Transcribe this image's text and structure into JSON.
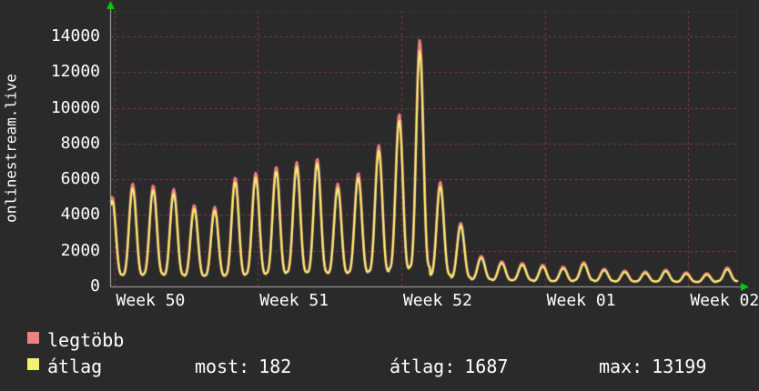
{
  "app": {
    "background": "#2a2a2a",
    "text_color": "#ffffff"
  },
  "chart_data": {
    "type": "line",
    "title": "",
    "ylabel_vertical": "onlinestream.live",
    "ylim": [
      0,
      15400
    ],
    "y_ticks": [
      0,
      2000,
      4000,
      6000,
      8000,
      10000,
      12000,
      14000
    ],
    "x_tick_labels": [
      {
        "label": "Week 50",
        "day": 0.6
      },
      {
        "label": "Week 51",
        "day": 7.6
      },
      {
        "label": "Week 52",
        "day": 14.6
      },
      {
        "label": "Week 01",
        "day": 21.6
      },
      {
        "label": "Week 02",
        "day": 28.6
      }
    ],
    "days": 32,
    "grid": true,
    "grid_color": "rgba(225,80,80,0.45)",
    "grid_minor_color": "rgba(200,80,80,0.12)",
    "axis_color": "#b0b0b0",
    "arrow_color": "#00d000",
    "daily_troughs": [
      650,
      650,
      700,
      650,
      600,
      600,
      650,
      700,
      750,
      800,
      800,
      750,
      800,
      850,
      1000,
      1100,
      650,
      500,
      400,
      350,
      350,
      300,
      300,
      350,
      300,
      280,
      280,
      280,
      260,
      250,
      300,
      182
    ],
    "series": [
      {
        "name": "legtöbb",
        "color": "#f08080",
        "daily_peaks": [
          5000,
          5750,
          5650,
          5450,
          4550,
          4450,
          6100,
          6350,
          6700,
          6950,
          7150,
          5750,
          6350,
          7900,
          9650,
          13800,
          5850,
          3550,
          1700,
          1400,
          1300,
          1200,
          1100,
          1350,
          980,
          880,
          830,
          930,
          780,
          730,
          1050,
          560
        ]
      },
      {
        "name": "átlag",
        "color": "#f2f270",
        "daily_peaks": [
          4800,
          5500,
          5400,
          5200,
          4350,
          4250,
          5850,
          6100,
          6450,
          6700,
          6900,
          5500,
          6100,
          7600,
          9300,
          13199,
          5600,
          3400,
          1600,
          1300,
          1200,
          1100,
          1000,
          1250,
          900,
          800,
          750,
          850,
          700,
          650,
          950,
          500
        ]
      }
    ]
  },
  "legend": {
    "series": [
      {
        "label": "legtöbb",
        "color": "#f08080"
      },
      {
        "label": "átlag",
        "color": "#f2f270"
      }
    ]
  },
  "stats": [
    {
      "label": "most:",
      "value": "182"
    },
    {
      "label": "átlag:",
      "value": "1687"
    },
    {
      "label": "max:",
      "value": "13199"
    }
  ]
}
